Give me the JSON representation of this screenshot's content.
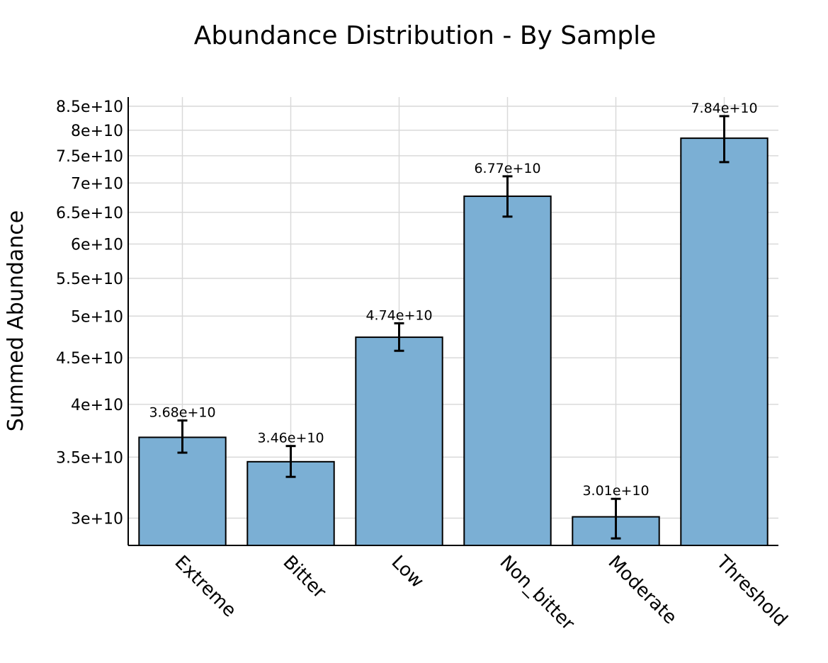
{
  "chart_data": {
    "type": "bar",
    "title": "Abundance Distribution - By Sample",
    "xlabel": "",
    "ylabel": "Summed Abundance",
    "y_scale": "log",
    "ylim": [
      28000000000,
      87000000000
    ],
    "grid": true,
    "legend": "none",
    "colors": {
      "bar_fill": "#7bafd4",
      "bar_edge": "#000000",
      "grid": "#d9d9d9",
      "axis": "#000000"
    },
    "categories": [
      "Extreme",
      "Bitter",
      "Low",
      "Non_bitter",
      "Moderate",
      "Threshold"
    ],
    "values": [
      36800000000,
      34600000000,
      47400000000,
      67700000000,
      30100000000,
      78400000000
    ],
    "error_low": [
      35400000000,
      33300000000,
      45800000000,
      64300000000,
      28500000000,
      73800000000
    ],
    "error_high": [
      38400000000,
      36000000000,
      49100000000,
      71200000000,
      31500000000,
      82900000000
    ],
    "value_labels": [
      "3.68e+10",
      "3.46e+10",
      "4.74e+10",
      "6.77e+10",
      "3.01e+10",
      "7.84e+10"
    ],
    "yticks": [
      30000000000,
      35000000000,
      40000000000,
      45000000000,
      50000000000,
      55000000000,
      60000000000,
      65000000000,
      70000000000,
      75000000000,
      80000000000,
      85000000000
    ],
    "ytick_labels": [
      "3e+10",
      "3.5e+10",
      "4e+10",
      "4.5e+10",
      "5e+10",
      "5.5e+10",
      "6e+10",
      "6.5e+10",
      "7e+10",
      "7.5e+10",
      "8e+10",
      "8.5e+10"
    ]
  }
}
